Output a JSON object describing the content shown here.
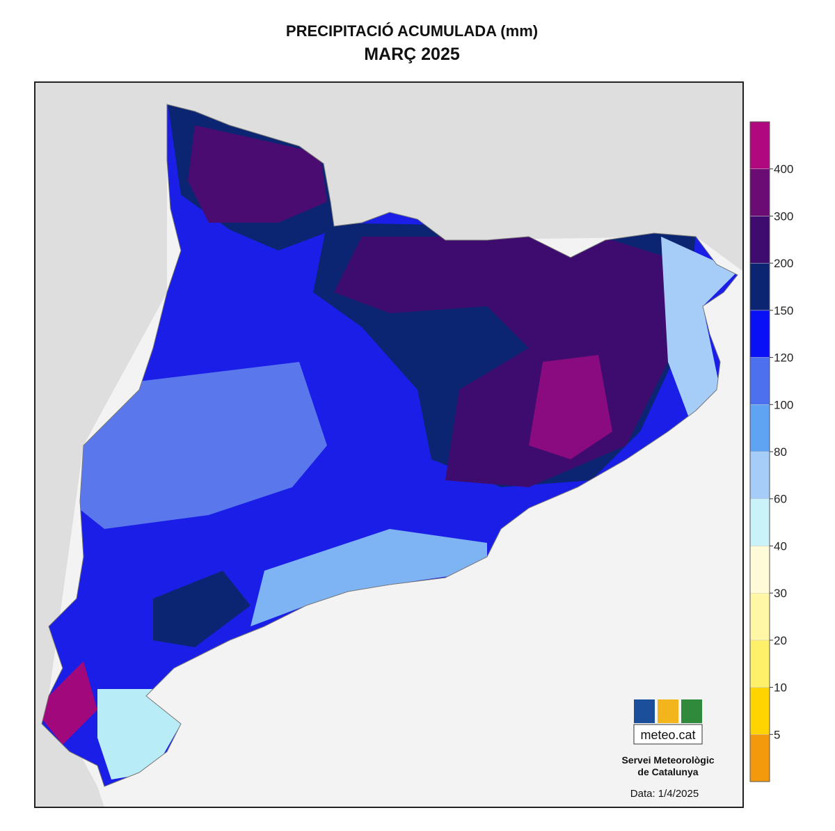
{
  "title": "PRECIPITACIÓ ACUMULADA (mm)",
  "subtitle": "MARÇ 2025",
  "legend": {
    "ticks": [
      5,
      10,
      20,
      30,
      40,
      60,
      80,
      100,
      120,
      150,
      200,
      300,
      400
    ],
    "colors": [
      "#f39a0c",
      "#ffd400",
      "#fff06a",
      "#fff7a6",
      "#fffbd8",
      "#c9f3f8",
      "#a6cdf8",
      "#5ea4f2",
      "#4d70ef",
      "#0a10f5",
      "#0b2572",
      "#3d0c6e",
      "#6a0c74",
      "#b0097f"
    ]
  },
  "logo": {
    "name": "meteo.cat",
    "org_line1": "Servei Meteorològic",
    "org_line2": "de Catalunya"
  },
  "date": "Data: 1/4/2025"
}
